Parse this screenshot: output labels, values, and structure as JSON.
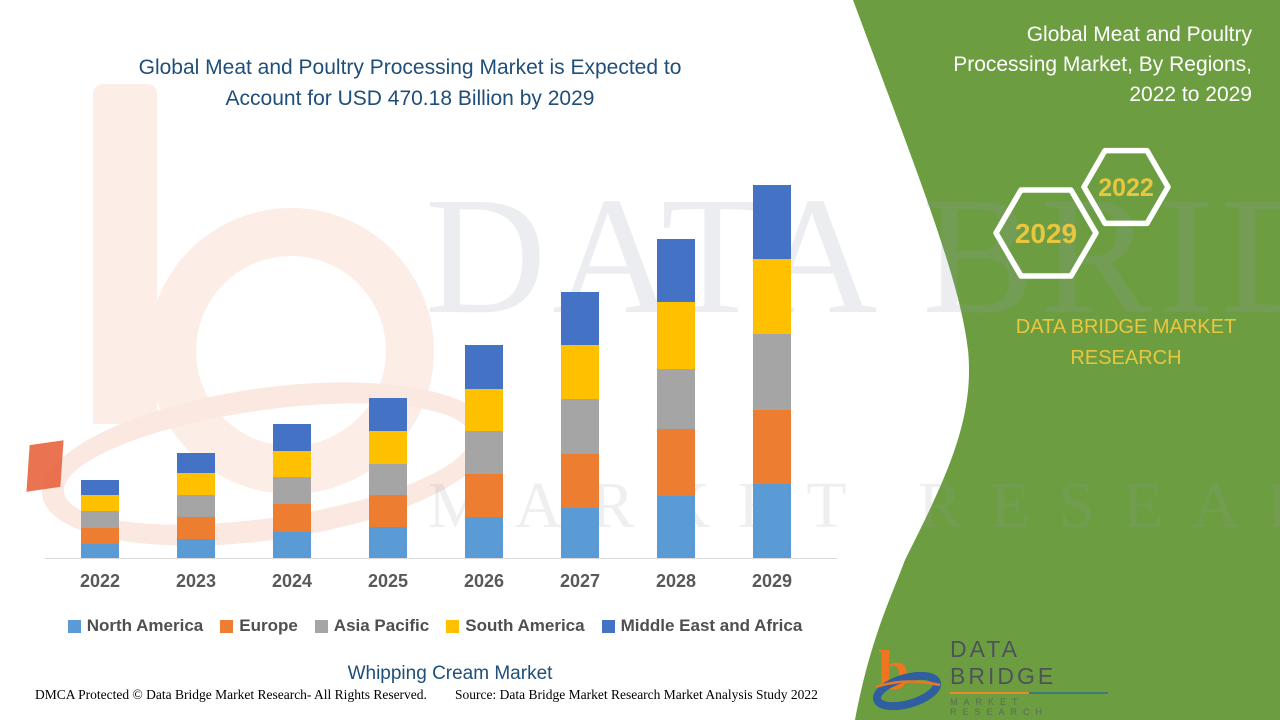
{
  "header": {
    "title_line1": "Global Meat and Poultry Processing Market is Expected to",
    "title_line2": "Account for USD 470.18 Billion by 2029"
  },
  "side_panel": {
    "panel_color": "#6C9E41",
    "accent_text_color": "#E9C63F",
    "title_line1": "Global Meat and Poultry",
    "title_line2": "Processing Market, By Regions,",
    "title_line3": "2022 to 2029",
    "hexagons": [
      {
        "label": "2029"
      },
      {
        "label": "2022"
      }
    ],
    "brand_line1": "DATA BRIDGE MARKET",
    "brand_line2": "RESEARCH"
  },
  "watermark": {
    "line1": "DATA BRIDGE",
    "line2": "MARKET RESEARCH"
  },
  "chart_data": {
    "type": "bar",
    "stacked": true,
    "title": "Global Meat and Poultry Processing Market, By Regions, 2022 to 2029",
    "unit": "USD Billion",
    "categories": [
      "2022",
      "2023",
      "2024",
      "2025",
      "2026",
      "2027",
      "2028",
      "2029"
    ],
    "series": [
      {
        "name": "North America",
        "color": "#5B9BD5",
        "values": [
          18.9,
          25.1,
          33.9,
          40.2,
          52.8,
          64.1,
          79.2,
          94.3
        ]
      },
      {
        "name": "Europe",
        "color": "#ED7D31",
        "values": [
          20.1,
          27.7,
          35.2,
          40.2,
          54.1,
          67.9,
          84.2,
          93.0
        ]
      },
      {
        "name": "Asia Pacific",
        "color": "#A5A5A5",
        "values": [
          21.4,
          27.7,
          33.9,
          39.0,
          54.1,
          69.1,
          75.4,
          95.5
        ]
      },
      {
        "name": "South America",
        "color": "#FFC000",
        "values": [
          20.1,
          27.7,
          32.7,
          41.5,
          52.8,
          67.9,
          84.2,
          94.3
        ]
      },
      {
        "name": "Middle East and Africa",
        "color": "#4472C4",
        "values": [
          18.9,
          25.1,
          33.9,
          41.5,
          55.3,
          66.6,
          79.2,
          93.08
        ]
      }
    ],
    "totals_estimated": [
      99.4,
      133.3,
      169.6,
      202.4,
      269.1,
      335.6,
      402.2,
      470.18
    ],
    "ylim": [
      0,
      470.18
    ],
    "xlabel": "",
    "ylabel": "",
    "grid": false,
    "y_axis_visible": false,
    "legend_position": "bottom"
  },
  "footer": {
    "market_label": "Whipping Cream Market",
    "dmca": "DMCA Protected © Data Bridge Market Research- All Rights Reserved.",
    "source": "Source: Data Bridge Market Research Market Analysis Study 2022"
  },
  "logo": {
    "wordmark": "DATA BRIDGE",
    "tagline": "MARKET RESEARCH"
  }
}
